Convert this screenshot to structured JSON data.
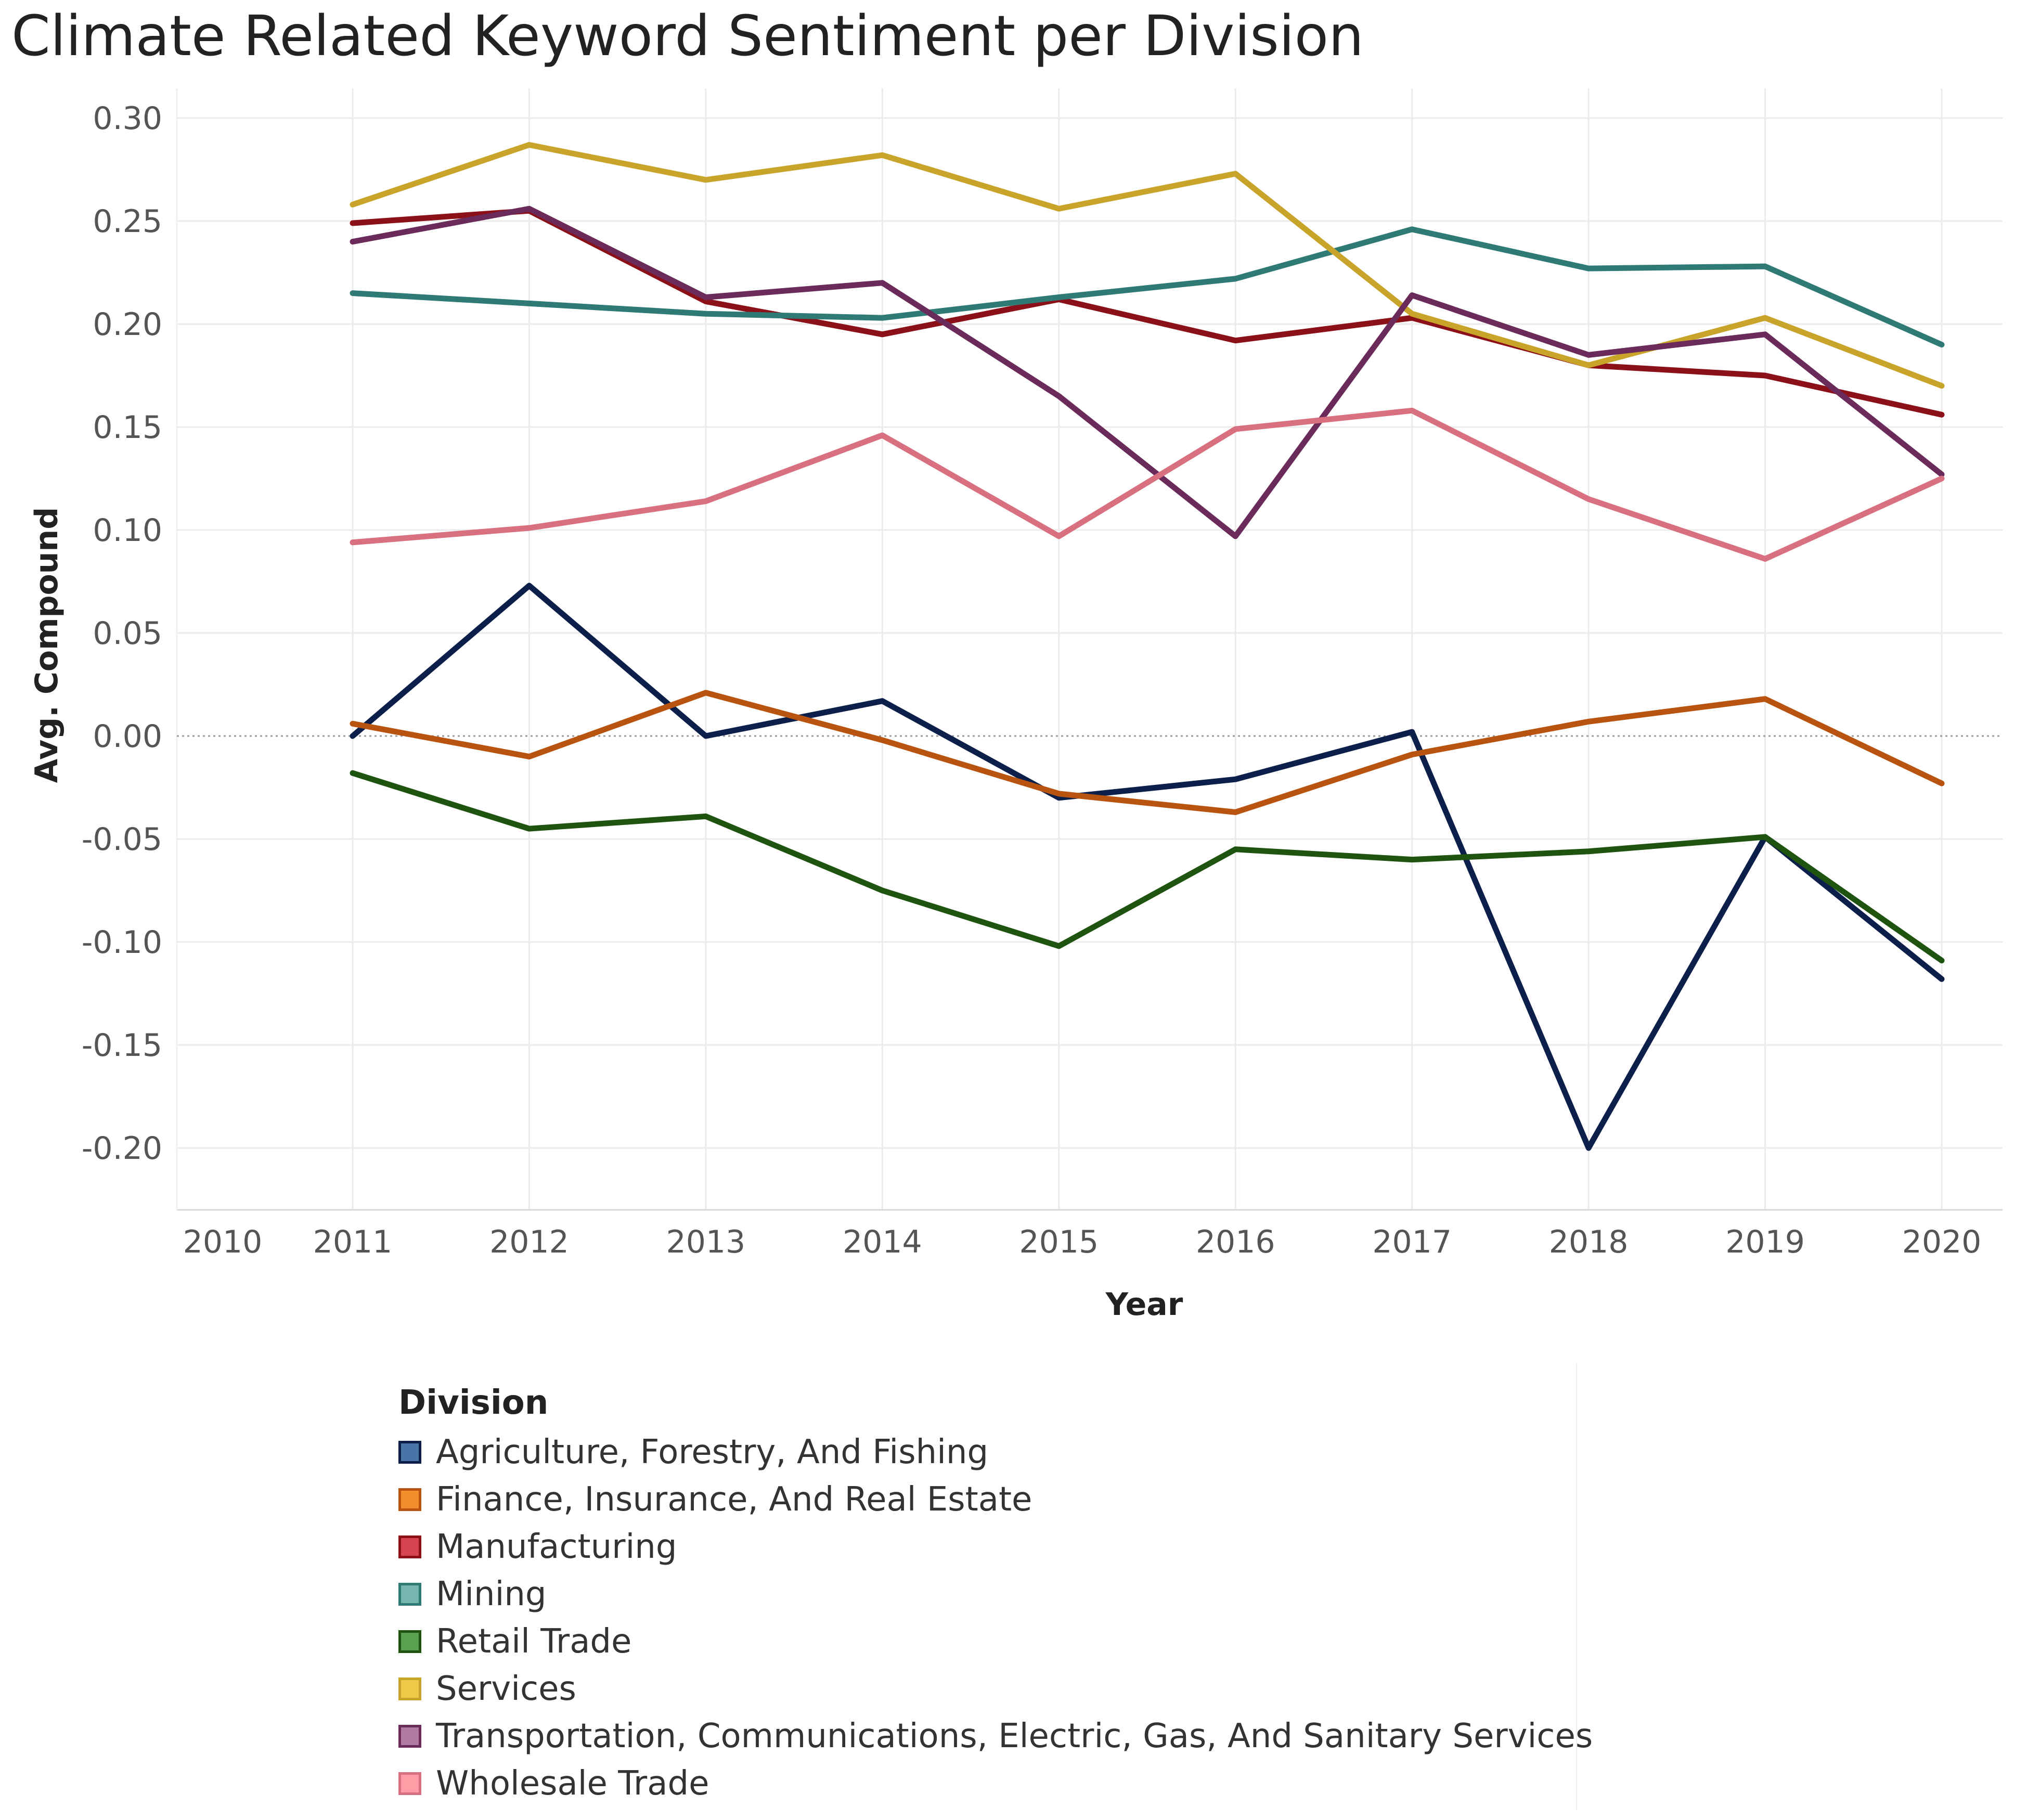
{
  "colors": {
    "Agriculture, Forestry, And Fishing": "#0c1f4a",
    "Finance, Insurance, And Real Estate": "#b85410",
    "Manufacturing": "#8c1018",
    "Mining": "#2f7a74",
    "Retail Trade": "#1f5410",
    "Services": "#c9a42a",
    "Transportation, Communications, Electric, Gas, And Sanitary Services": "#6a2a5a",
    "Wholesale Trade": "#d97080"
  },
  "swatch_colors": {
    "Agriculture, Forestry, And Fishing": "#4a74a8",
    "Finance, Insurance, And Real Estate": "#f28e2b",
    "Manufacturing": "#d64550",
    "Mining": "#76b7b2",
    "Retail Trade": "#59a14f",
    "Services": "#edc948",
    "Transportation, Communications, Electric, Gas, And Sanitary Services": "#b07aa1",
    "Wholesale Trade": "#ff9da7"
  },
  "chart_data": {
    "type": "line",
    "title": "Climate Related Keyword Sentiment per Division",
    "xlabel": "Year",
    "ylabel": "Avg. Compound",
    "x_tick_labels": [
      "2010",
      "2011",
      "2012",
      "2013",
      "2014",
      "2015",
      "2016",
      "2017",
      "2018",
      "2019",
      "2020"
    ],
    "x": [
      2011,
      2012,
      2013,
      2014,
      2015,
      2016,
      2017,
      2018,
      2019,
      2020
    ],
    "ylim": [
      -0.225,
      0.31
    ],
    "y_ticks": [
      0.3,
      0.25,
      0.2,
      0.15,
      0.1,
      0.05,
      0.0,
      -0.05,
      -0.1,
      -0.15,
      -0.2
    ],
    "y_tick_labels": [
      "0.30",
      "0.25",
      "0.20",
      "0.15",
      "0.10",
      "0.05",
      "0.00",
      "-0.05",
      "-0.10",
      "-0.15",
      "-0.20"
    ],
    "grid": true,
    "legend_title": "Division",
    "legend_position": "bottom",
    "series": [
      {
        "name": "Agriculture, Forestry, And Fishing",
        "values": [
          0.0,
          0.073,
          0.0,
          0.017,
          -0.03,
          -0.021,
          0.002,
          -0.2,
          -0.049,
          -0.118
        ]
      },
      {
        "name": "Finance, Insurance, And Real Estate",
        "values": [
          0.006,
          -0.01,
          0.021,
          -0.002,
          -0.028,
          -0.037,
          -0.009,
          0.007,
          0.018,
          -0.023
        ]
      },
      {
        "name": "Manufacturing",
        "values": [
          0.249,
          0.255,
          0.211,
          0.195,
          0.212,
          0.192,
          0.203,
          0.18,
          0.175,
          0.156
        ]
      },
      {
        "name": "Mining",
        "values": [
          0.215,
          0.21,
          0.205,
          0.203,
          0.213,
          0.222,
          0.246,
          0.227,
          0.228,
          0.19
        ]
      },
      {
        "name": "Retail Trade",
        "values": [
          -0.018,
          -0.045,
          -0.039,
          -0.075,
          -0.102,
          -0.055,
          -0.06,
          -0.056,
          -0.049,
          -0.109
        ]
      },
      {
        "name": "Services",
        "values": [
          0.258,
          0.287,
          0.27,
          0.282,
          0.256,
          0.273,
          0.205,
          0.18,
          0.203,
          0.17
        ]
      },
      {
        "name": "Transportation, Communications, Electric, Gas, And Sanitary Services",
        "values": [
          0.24,
          0.256,
          0.213,
          0.22,
          0.165,
          0.097,
          0.214,
          0.185,
          0.195,
          0.127
        ]
      },
      {
        "name": "Wholesale Trade",
        "values": [
          0.094,
          0.101,
          0.114,
          0.146,
          0.097,
          0.149,
          0.158,
          0.115,
          0.086,
          0.125
        ]
      }
    ]
  }
}
